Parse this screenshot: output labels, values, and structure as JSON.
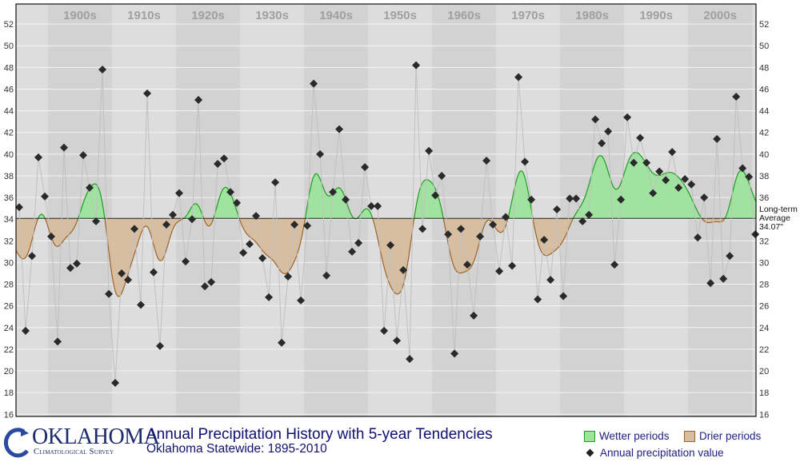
{
  "chart_data": {
    "type": "line",
    "title": "Annual Precipitation History with 5-year Tendencies",
    "subtitle": "Oklahoma Statewide: 1895-2010",
    "xlim": [
      1894.5,
      2010.1
    ],
    "ylim": [
      15.8,
      53.85
    ],
    "yticks": [
      16,
      18,
      20,
      22,
      24,
      26,
      28,
      30,
      32,
      34,
      36,
      38,
      40,
      42,
      44,
      46,
      48,
      50,
      52
    ],
    "grid": true,
    "decade_labels": [
      "1900s",
      "1910s",
      "1920s",
      "1930s",
      "1940s",
      "1950s",
      "1960s",
      "1970s",
      "1980s",
      "1990s",
      "2000s"
    ],
    "decade_starts": [
      1900,
      1910,
      1920,
      1930,
      1940,
      1950,
      1960,
      1970,
      1980,
      1990,
      2000
    ],
    "average": {
      "value": 34.07,
      "label_line1": "Long-term",
      "label_line2": "Average",
      "label_line3": "34.07\""
    },
    "series": [
      {
        "name": "Annual precipitation value",
        "start_year": 1895,
        "values": [
          35.1,
          23.7,
          30.6,
          39.7,
          36.1,
          32.4,
          22.7,
          40.6,
          29.5,
          29.9,
          39.9,
          36.9,
          33.8,
          47.8,
          27.1,
          18.9,
          29.0,
          28.4,
          33.1,
          26.1,
          45.6,
          29.1,
          22.3,
          33.5,
          34.4,
          36.4,
          30.1,
          34.0,
          45.0,
          27.8,
          28.2,
          39.1,
          39.6,
          36.5,
          35.5,
          30.9,
          31.7,
          34.3,
          30.4,
          26.8,
          37.4,
          22.6,
          28.7,
          33.5,
          26.5,
          33.4,
          46.5,
          40.0,
          28.8,
          36.5,
          42.3,
          35.8,
          31.0,
          31.8,
          38.8,
          35.2,
          35.2,
          23.7,
          31.6,
          22.8,
          29.3,
          21.1,
          48.2,
          33.1,
          40.3,
          36.2,
          38.0,
          32.6,
          21.6,
          33.1,
          29.8,
          25.1,
          32.4,
          39.4,
          33.5,
          29.2,
          34.2,
          29.7,
          47.1,
          39.3,
          35.8,
          26.6,
          32.1,
          28.4,
          34.9,
          26.9,
          35.9,
          35.9,
          33.8,
          34.4,
          43.2,
          41.0,
          42.1,
          29.8,
          35.8,
          43.4,
          39.2,
          41.5,
          39.2,
          36.4,
          38.4,
          37.6,
          40.2,
          36.9,
          37.7,
          37.2,
          32.3,
          36.0,
          28.1,
          41.4,
          28.5,
          30.6,
          45.3,
          38.7,
          37.9,
          32.6
        ]
      }
    ],
    "legend": {
      "wetter": "Wetter periods",
      "drier": "Drier periods",
      "points": "Annual precipitation value"
    },
    "colors": {
      "wet_fill": "#a0e2a0",
      "wet_line": "#1e9e1e",
      "dry_fill": "#d8bea0",
      "dry_line": "#9c6428",
      "point": "#2a2a2a",
      "connector": "#c0c0c0",
      "band_light": "#dddddd",
      "band_dark": "#d2d2d2",
      "grid": "#f4f4f4"
    }
  },
  "logo": {
    "name": "OKLAHOMA",
    "sub": "Climatological Survey"
  }
}
